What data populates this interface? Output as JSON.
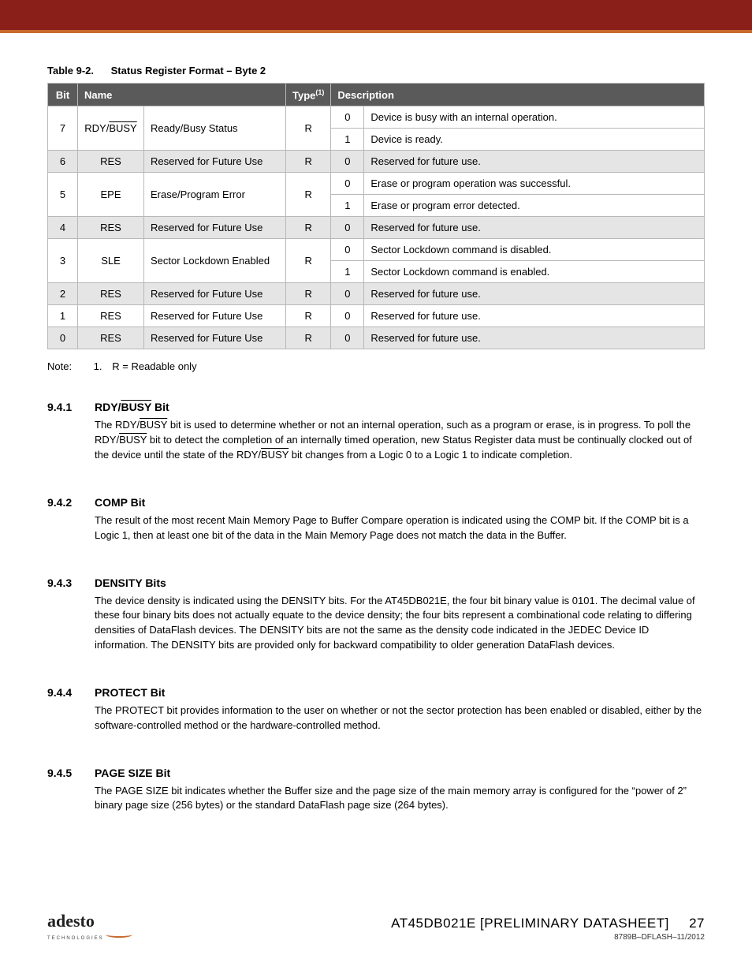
{
  "colors": {
    "header_bg": "#8a1f1a",
    "header_accent": "#c96a2d",
    "table_header_bg": "#5a5a5a",
    "table_header_fg": "#ffffff",
    "table_border": "#b8b8b8",
    "row_shade": "#e5e5e5",
    "text": "#000000",
    "background": "#ffffff"
  },
  "typography": {
    "body_font": "Arial",
    "body_size_pt": 10,
    "heading_size_pt": 11,
    "footer_title_size_pt": 13
  },
  "table": {
    "caption_number": "Table 9-2.",
    "caption_text": "Status Register Format – Byte 2",
    "headers": {
      "bit": "Bit",
      "name": "Name",
      "type": "Type",
      "type_sup": "(1)",
      "description": "Description"
    },
    "rows": [
      {
        "bit": "7",
        "sym": "RDY/",
        "sym_over": "BUSY",
        "label": "Ready/Busy Status",
        "type": "R",
        "shade": false,
        "vals": [
          {
            "v": "0",
            "d": "Device is busy with an internal operation."
          },
          {
            "v": "1",
            "d": "Device is ready."
          }
        ]
      },
      {
        "bit": "6",
        "sym": "RES",
        "label": "Reserved for Future Use",
        "type": "R",
        "shade": true,
        "vals": [
          {
            "v": "0",
            "d": "Reserved for future use."
          }
        ]
      },
      {
        "bit": "5",
        "sym": "EPE",
        "label": "Erase/Program Error",
        "type": "R",
        "shade": false,
        "vals": [
          {
            "v": "0",
            "d": "Erase or program operation was successful."
          },
          {
            "v": "1",
            "d": "Erase or program error detected."
          }
        ]
      },
      {
        "bit": "4",
        "sym": "RES",
        "label": "Reserved for Future Use",
        "type": "R",
        "shade": true,
        "vals": [
          {
            "v": "0",
            "d": "Reserved for future use."
          }
        ]
      },
      {
        "bit": "3",
        "sym": "SLE",
        "label": "Sector Lockdown Enabled",
        "type": "R",
        "shade": false,
        "vals": [
          {
            "v": "0",
            "d": "Sector Lockdown command is disabled."
          },
          {
            "v": "1",
            "d": "Sector Lockdown command is enabled."
          }
        ]
      },
      {
        "bit": "2",
        "sym": "RES",
        "label": "Reserved for Future Use",
        "type": "R",
        "shade": true,
        "vals": [
          {
            "v": "0",
            "d": "Reserved for future use."
          }
        ]
      },
      {
        "bit": "1",
        "sym": "RES",
        "label": "Reserved for Future Use",
        "type": "R",
        "shade": false,
        "vals": [
          {
            "v": "0",
            "d": "Reserved for future use."
          }
        ]
      },
      {
        "bit": "0",
        "sym": "RES",
        "label": "Reserved for Future Use",
        "type": "R",
        "shade": true,
        "vals": [
          {
            "v": "0",
            "d": "Reserved for future use."
          }
        ]
      }
    ]
  },
  "note": {
    "label": "Note:",
    "num": "1.",
    "text": "R = Readable only"
  },
  "sections": [
    {
      "num": "9.4.1",
      "title_pre": "RDY/",
      "title_over": "BUSY",
      "title_post": " Bit",
      "paragraphs": [
        {
          "spans": [
            {
              "t": "The RDY/"
            },
            {
              "t": "BUSY",
              "over": true
            },
            {
              "t": " bit is used to determine whether or not an internal operation, such as a program or erase, is in progress. To poll the RDY/"
            },
            {
              "t": "BUSY",
              "over": true
            },
            {
              "t": " bit to detect the completion of an internally timed operation, new Status Register data must be continually clocked out of the device until the state of the RDY/"
            },
            {
              "t": "BUSY",
              "over": true
            },
            {
              "t": " bit changes from a Logic 0 to a Logic 1 to indicate completion."
            }
          ]
        }
      ]
    },
    {
      "num": "9.4.2",
      "title": "COMP Bit",
      "paragraphs": [
        {
          "text": "The result of the most recent Main Memory Page to Buffer Compare operation is indicated using the COMP bit. If the COMP bit is a Logic 1, then at least one bit of the data in the Main Memory Page does not match the data in the Buffer."
        }
      ]
    },
    {
      "num": "9.4.3",
      "title": "DENSITY Bits",
      "paragraphs": [
        {
          "text": "The device density is indicated using the DENSITY bits. For the AT45DB021E, the four bit binary value is 0101. The decimal value of these four binary bits does not actually equate to the device density; the four bits represent a combinational code relating to differing densities of DataFlash devices. The DENSITY bits are not the same as the density code indicated in the JEDEC Device ID information. The DENSITY bits are provided only for backward compatibility to older generation DataFlash devices."
        }
      ]
    },
    {
      "num": "9.4.4",
      "title": "PROTECT Bit",
      "paragraphs": [
        {
          "text": "The PROTECT bit provides information to the user on whether or not the sector protection has been enabled or disabled, either by the software-controlled method or the hardware-controlled method."
        }
      ]
    },
    {
      "num": "9.4.5",
      "title": "PAGE SIZE Bit",
      "paragraphs": [
        {
          "text": "The PAGE SIZE bit indicates whether the Buffer size and the page size of the main memory array is configured for the “power of 2” binary page size (256 bytes) or the standard DataFlash page size (264 bytes)."
        }
      ]
    }
  ],
  "footer": {
    "logo_text": "adesto",
    "logo_sub": "TECHNOLOGIES",
    "doc_title": "AT45DB021E [PRELIMINARY DATASHEET]",
    "page_number": "27",
    "doc_code": "8789B–DFLASH–11/2012"
  }
}
